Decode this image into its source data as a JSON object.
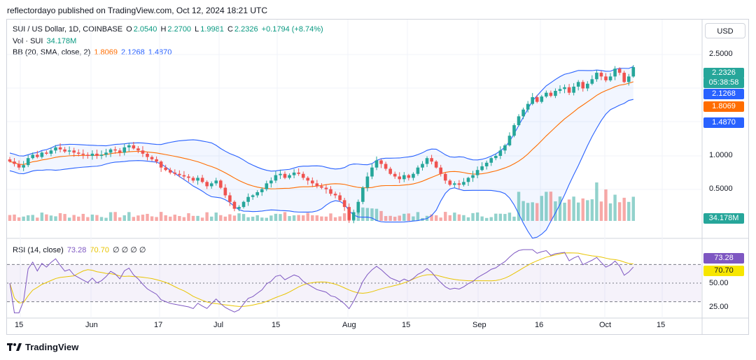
{
  "header": {
    "published": "reflectordayo published on TradingView.com, Oct 12, 2024 18:21 UTC"
  },
  "legend": {
    "symbol": "SUI / US Dollar, 1D, COINBASE",
    "ohlc": {
      "o_label": "O",
      "o": "2.0540",
      "h_label": "H",
      "h": "2.2700",
      "l_label": "L",
      "l": "1.9981",
      "c_label": "C",
      "c": "2.2326",
      "change": "+0.1794 (+8.74%)"
    },
    "vol_label": "Vol · SUI",
    "vol_value": "34.178M",
    "bb_label": "BB (20, SMA, close, 2)",
    "bb_mid": "1.8069",
    "bb_up": "2.1268",
    "bb_low": "1.4870",
    "rsi_label": "RSI (14, close)",
    "rsi_value": "73.28",
    "rsi_ma": "70.70",
    "rsi_extra": "∅ ∅ ∅ ∅"
  },
  "price_axis": {
    "currency_button": "USD",
    "ticks": [
      "2.5000",
      "1.0000",
      "0.5000"
    ]
  },
  "price_labels": {
    "last": "2.2326",
    "countdown": "05:38:58",
    "upper": "2.1268",
    "middle": "1.8069",
    "lower": "1.4870",
    "volume": "34.178M"
  },
  "rsi_axis": {
    "ticks": [
      "73.28",
      "70.70",
      "50.00",
      "25.00"
    ]
  },
  "time_axis": {
    "ticks": [
      "15",
      "Jun",
      "17",
      "Jul",
      "15",
      "Aug",
      "15",
      "Sep",
      "16",
      "Oct",
      "15"
    ]
  },
  "footer": {
    "brand": "TradingView"
  },
  "colors": {
    "up": "#26a69a",
    "down": "#ef5350",
    "bb_band": "#2962ff",
    "bb_basis": "#ff6d00",
    "rsi": "#7e57c2",
    "rsi_ma": "#e8c400"
  },
  "chart_data": {
    "type": "candlestick",
    "x_axis": "date (daily)",
    "price_scale": "log",
    "price_approx_range": [
      0.45,
      2.7
    ],
    "close_series_approx": [
      0.95,
      0.93,
      0.9,
      0.92,
      0.98,
      1.01,
      0.99,
      1.03,
      1.02,
      1.05,
      1.08,
      1.06,
      1.04,
      1.05,
      1.03,
      1.02,
      1.01,
      1.0,
      1.02,
      1.0,
      1.01,
      1.03,
      1.06,
      1.05,
      1.03,
      1.08,
      1.1,
      1.07,
      1.05,
      1.02,
      0.99,
      0.97,
      0.95,
      0.9,
      0.88,
      0.86,
      0.85,
      0.84,
      0.83,
      0.82,
      0.8,
      0.82,
      0.79,
      0.76,
      0.78,
      0.8,
      0.75,
      0.7,
      0.66,
      0.62,
      0.63,
      0.66,
      0.69,
      0.7,
      0.72,
      0.74,
      0.78,
      0.8,
      0.84,
      0.85,
      0.82,
      0.84,
      0.86,
      0.85,
      0.82,
      0.8,
      0.78,
      0.76,
      0.75,
      0.74,
      0.71,
      0.7,
      0.67,
      0.63,
      0.56,
      0.6,
      0.66,
      0.75,
      0.83,
      0.9,
      0.96,
      0.93,
      0.89,
      0.85,
      0.83,
      0.81,
      0.84,
      0.82,
      0.85,
      0.9,
      0.93,
      0.98,
      0.95,
      0.9,
      0.85,
      0.8,
      0.77,
      0.78,
      0.77,
      0.79,
      0.82,
      0.84,
      0.88,
      0.91,
      0.94,
      0.98,
      1.0,
      1.05,
      1.1,
      1.2,
      1.32,
      1.43,
      1.52,
      1.6,
      1.7,
      1.63,
      1.71,
      1.77,
      1.72,
      1.8,
      1.83,
      1.86,
      1.77,
      1.87,
      1.95,
      1.84,
      1.92,
      2.0,
      2.12,
      2.05,
      1.98,
      2.05,
      2.2,
      2.12,
      1.95,
      2.05,
      2.23
    ],
    "bollinger": {
      "upper_last": 2.1268,
      "basis_last": 1.8069,
      "lower_last": 1.487
    },
    "volume_last": "34.178M",
    "rsi": {
      "length": 14,
      "last": 73.28,
      "ma_last": 70.7,
      "upper_band": 70,
      "middle_band": 50,
      "lower_band": 30
    }
  }
}
